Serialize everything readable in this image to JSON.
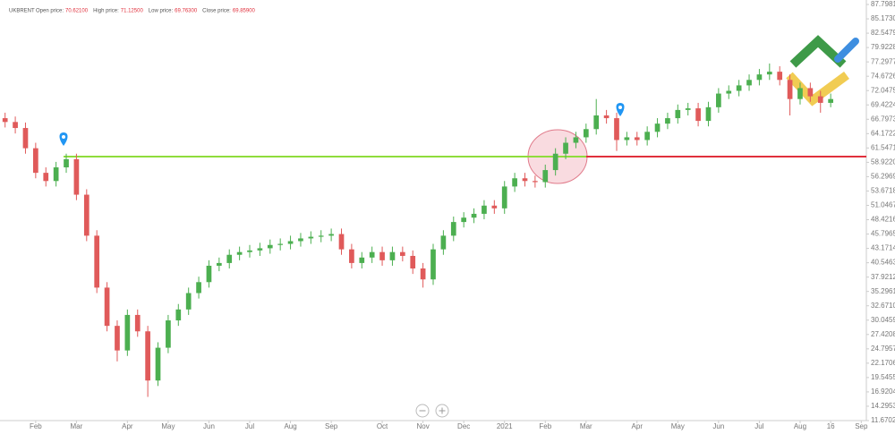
{
  "chart_data": {
    "type": "candlestick",
    "info": {
      "symbol": "UKBRENT",
      "fields": [
        {
          "label": "Open price:",
          "value": "70.62100"
        },
        {
          "label": "High price:",
          "value": "71.12500"
        },
        {
          "label": "Low price:",
          "value": "69.76300"
        },
        {
          "label": "Close price:",
          "value": "69.85900"
        }
      ]
    },
    "categories": [
      null,
      null,
      null,
      "Feb",
      null,
      null,
      null,
      "Mar",
      null,
      null,
      null,
      null,
      "Apr",
      null,
      null,
      null,
      "May",
      null,
      null,
      null,
      "Jun",
      null,
      null,
      null,
      "Jul",
      null,
      null,
      null,
      "Aug",
      null,
      null,
      null,
      "Sep",
      null,
      null,
      null,
      null,
      "Oct",
      null,
      null,
      null,
      "Nov",
      null,
      null,
      null,
      "Dec",
      null,
      null,
      null,
      "2021",
      null,
      null,
      null,
      "Feb",
      null,
      null,
      null,
      "Mar",
      null,
      null,
      null,
      null,
      "Apr",
      null,
      null,
      null,
      "May",
      null,
      null,
      null,
      "Jun",
      null,
      null,
      null,
      "Jul",
      null,
      null,
      null,
      "Aug",
      null,
      null,
      "16",
      null,
      null,
      "Sep"
    ],
    "open": [
      67,
      66.3,
      65.2,
      61.5,
      57,
      55.5,
      58,
      59.5,
      53,
      45.5,
      36,
      29,
      24.5,
      31,
      28,
      19,
      25,
      30,
      32,
      35,
      37,
      40,
      40.5,
      42,
      42.5,
      42.8,
      43.2,
      43.8,
      44,
      44.5,
      45,
      45.3,
      45.5,
      45.8,
      43,
      40.5,
      41.5,
      42.5,
      41,
      42.5,
      41.8,
      39.5,
      37.5,
      43,
      45.5,
      48,
      48.8,
      49.5,
      51,
      50.5,
      54.5,
      56,
      55.5,
      55.3,
      57.5,
      60.5,
      62.5,
      63.5,
      65,
      67.5,
      67,
      63,
      63.5,
      63,
      64.5,
      66,
      67,
      68.5,
      68.8,
      66.5,
      69,
      71.5,
      72,
      73,
      74,
      75,
      75.5,
      74,
      70.5,
      72.5,
      71,
      69.8,
      null,
      null,
      null
    ],
    "high": [
      68,
      67.3,
      66.2,
      62.5,
      58,
      59,
      60.5,
      60.5,
      54,
      46.5,
      37,
      30,
      32,
      32,
      29,
      26,
      31,
      33,
      36,
      38,
      41,
      41.5,
      43,
      43.5,
      43.8,
      44.2,
      44.8,
      45,
      45.5,
      46,
      46.3,
      46.5,
      46.8,
      46.8,
      44,
      42.5,
      43.5,
      43.5,
      43.5,
      43.5,
      42.8,
      40.5,
      44,
      46.5,
      49,
      49.8,
      50.5,
      52,
      52,
      55.5,
      57,
      57,
      56.5,
      58.5,
      61.5,
      63.5,
      64.5,
      66,
      70.5,
      68.5,
      68,
      64.5,
      64.5,
      65.5,
      67,
      68,
      69.5,
      69.8,
      69.8,
      70,
      72.5,
      73,
      74,
      75,
      76,
      77,
      76.5,
      75,
      73.5,
      73.5,
      72,
      71.5,
      null,
      null,
      null
    ],
    "low": [
      65.3,
      64.2,
      60.5,
      56,
      54.5,
      54.5,
      57,
      52,
      44.5,
      35,
      28,
      22.5,
      23.5,
      27,
      16,
      18,
      24,
      29,
      31,
      34,
      36,
      39,
      39.5,
      41,
      41.5,
      41.8,
      42.2,
      42.8,
      43,
      43.5,
      44,
      44.3,
      44.5,
      42,
      39.5,
      39.5,
      40.5,
      40,
      40,
      40.8,
      38.5,
      36,
      36.5,
      42,
      44.5,
      47,
      47.8,
      48.5,
      49.5,
      49.5,
      53.5,
      54.5,
      54.3,
      54.3,
      56.5,
      59.5,
      61.5,
      62.5,
      64,
      66,
      61,
      62,
      62,
      62,
      63.5,
      65,
      66,
      67.5,
      65.5,
      65.5,
      68,
      70.5,
      71,
      72,
      73,
      74,
      73,
      67.5,
      69.5,
      70,
      68,
      69,
      null,
      null,
      null
    ],
    "close": [
      66.3,
      65.2,
      61.5,
      57,
      55.5,
      58,
      59.5,
      53,
      45.5,
      36,
      29,
      24.5,
      31,
      28,
      19,
      25,
      30,
      32,
      35,
      37,
      40,
      40.5,
      42,
      42.5,
      42.8,
      43.2,
      43.8,
      44,
      44.5,
      45,
      45.3,
      45.5,
      45.8,
      43,
      40.5,
      41.5,
      42.5,
      41,
      42.5,
      41.8,
      39.5,
      37.5,
      43,
      45.5,
      48,
      48.8,
      49.5,
      51,
      50.5,
      54.5,
      56,
      55.5,
      55.3,
      57.5,
      60.5,
      62.5,
      63.5,
      65,
      67.5,
      67,
      63,
      63.5,
      63,
      64.5,
      66,
      67,
      68.5,
      68.8,
      66.5,
      69,
      71.5,
      72,
      73,
      74,
      75,
      75.5,
      74,
      70.5,
      72.5,
      71,
      69.8,
      70.5,
      null,
      null,
      null
    ],
    "up_color": "#4caf50",
    "down_color": "#e05a5a",
    "hlines": [
      {
        "value": 59.96,
        "color": "#8fdc3c"
      },
      {
        "value": 59.96,
        "color": "#e0303c"
      }
    ],
    "ylim": [
      11.6702,
      88.62
    ],
    "yticks": [
      {
        "value": 87.7981,
        "label": "87.79810"
      },
      {
        "value": 85.173,
        "label": "85.17300"
      },
      {
        "value": 82.5479,
        "label": "82.54790"
      },
      {
        "value": 79.9228,
        "label": "79.92280"
      },
      {
        "value": 77.2977,
        "label": "77.29770"
      },
      {
        "value": 74.6726,
        "label": "74.67260"
      },
      {
        "value": 72.0475,
        "label": "72.04750"
      },
      {
        "value": 69.4224,
        "label": "69.42240"
      },
      {
        "value": 66.7973,
        "label": "66.79730"
      },
      {
        "value": 64.1722,
        "label": "64.17220"
      },
      {
        "value": 61.5471,
        "label": "61.54710"
      },
      {
        "value": 58.922,
        "label": "58.92200"
      },
      {
        "value": 56.2969,
        "label": "56.29690"
      },
      {
        "value": 53.6718,
        "label": "53.67180"
      },
      {
        "value": 51.0467,
        "label": "51.04670"
      },
      {
        "value": 48.4216,
        "label": "48.42160"
      },
      {
        "value": 45.7965,
        "label": "45.79650"
      },
      {
        "value": 43.1714,
        "label": "43.17140"
      },
      {
        "value": 40.5463,
        "label": "40.54630"
      },
      {
        "value": 37.9212,
        "label": "37.92120"
      },
      {
        "value": 35.2961,
        "label": "35.29610"
      },
      {
        "value": 32.671,
        "label": "32.67100"
      },
      {
        "value": 30.0459,
        "label": "30.04590"
      },
      {
        "value": 27.4208,
        "label": "27.42080"
      },
      {
        "value": 24.7957,
        "label": "24.79570"
      },
      {
        "value": 22.1706,
        "label": "22.17060"
      },
      {
        "value": 19.5455,
        "label": "19.54550"
      },
      {
        "value": 16.9204,
        "label": "16.92040"
      },
      {
        "value": 14.2953,
        "label": "14.29530"
      },
      {
        "value": 11.6702,
        "label": "11.67020"
      }
    ]
  }
}
